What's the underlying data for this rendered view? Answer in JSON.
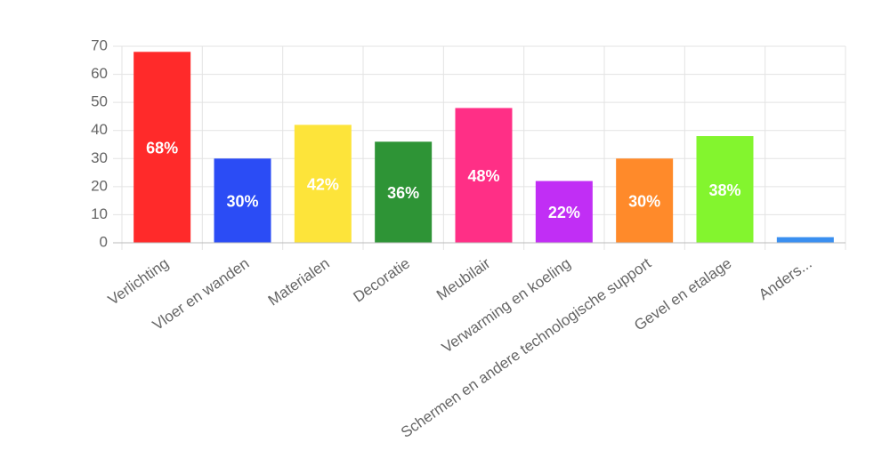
{
  "chart_data": {
    "type": "bar",
    "categories": [
      "Verlichting",
      "Vloer en wanden",
      "Materialen",
      "Decoratie",
      "Meubilair",
      "Verwarming en koeling",
      "Schermen en andere technologische support",
      "Gevel en etalage",
      "Anders..."
    ],
    "values": [
      68,
      30,
      42,
      36,
      48,
      22,
      30,
      38,
      2
    ],
    "value_labels": [
      "68%",
      "30%",
      "42%",
      "36%",
      "48%",
      "22%",
      "30%",
      "38%",
      null
    ],
    "colors": [
      "#ff2a2a",
      "#2b4cf5",
      "#fde43a",
      "#2e9436",
      "#ff2f86",
      "#c12ef5",
      "#ff8a2a",
      "#83f52e",
      "#3a8ff0"
    ],
    "ylim": [
      0,
      70
    ],
    "yticks": [
      0,
      10,
      20,
      30,
      40,
      50,
      60,
      70
    ],
    "grid": true
  }
}
